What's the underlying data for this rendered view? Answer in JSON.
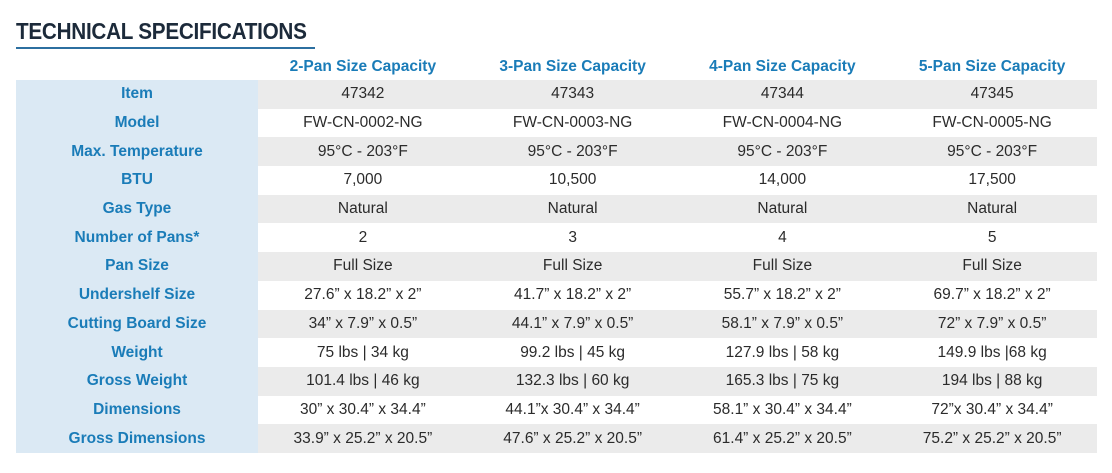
{
  "header": {
    "title": "TECHNICAL SPECIFICATIONS"
  },
  "table": {
    "columns": [
      "2-Pan Size Capacity",
      "3-Pan Size Capacity",
      "4-Pan Size Capacity",
      "5-Pan Size Capacity"
    ],
    "rows": [
      [
        "Item",
        "47342",
        "47343",
        "47344",
        "47345"
      ],
      [
        "Model",
        "FW-CN-0002-NG",
        "FW-CN-0003-NG",
        "FW-CN-0004-NG",
        "FW-CN-0005-NG"
      ],
      [
        "Max. Temperature",
        "95°C - 203°F",
        "95°C - 203°F",
        "95°C - 203°F",
        "95°C - 203°F"
      ],
      [
        "BTU",
        "7,000",
        "10,500",
        "14,000",
        "17,500"
      ],
      [
        "Gas Type",
        "Natural",
        "Natural",
        "Natural",
        "Natural"
      ],
      [
        "Number of Pans*",
        "2",
        "3",
        "4",
        "5"
      ],
      [
        "Pan Size",
        "Full Size",
        "Full Size",
        "Full Size",
        "Full Size"
      ],
      [
        "Undershelf Size",
        "27.6” x 18.2” x 2”",
        "41.7” x 18.2” x 2”",
        "55.7” x 18.2” x 2”",
        "69.7” x 18.2” x 2”"
      ],
      [
        "Cutting Board Size",
        "34” x 7.9” x 0.5”",
        "44.1” x 7.9” x 0.5”",
        "58.1” x 7.9” x 0.5”",
        "72” x 7.9” x 0.5”"
      ],
      [
        "Weight",
        "75 lbs | 34 kg",
        "99.2 lbs | 45 kg",
        "127.9 lbs | 58 kg",
        "149.9 lbs |68 kg"
      ],
      [
        "Gross Weight",
        "101.4 lbs | 46 kg",
        "132.3 lbs | 60 kg",
        "165.3 lbs | 75 kg",
        "194 lbs | 88 kg"
      ],
      [
        "Dimensions",
        "30” x 30.4” x 34.4”",
        "44.1”x 30.4” x 34.4”",
        "58.1” x 30.4” x 34.4”",
        "72”x 30.4” x 34.4”"
      ],
      [
        "Gross Dimensions",
        "33.9” x 25.2” x 20.5”",
        "47.6” x 25.2” x 20.5”",
        "61.4” x 25.2” x 20.5”",
        "75.2” x 25.2” x 20.5”"
      ]
    ]
  }
}
